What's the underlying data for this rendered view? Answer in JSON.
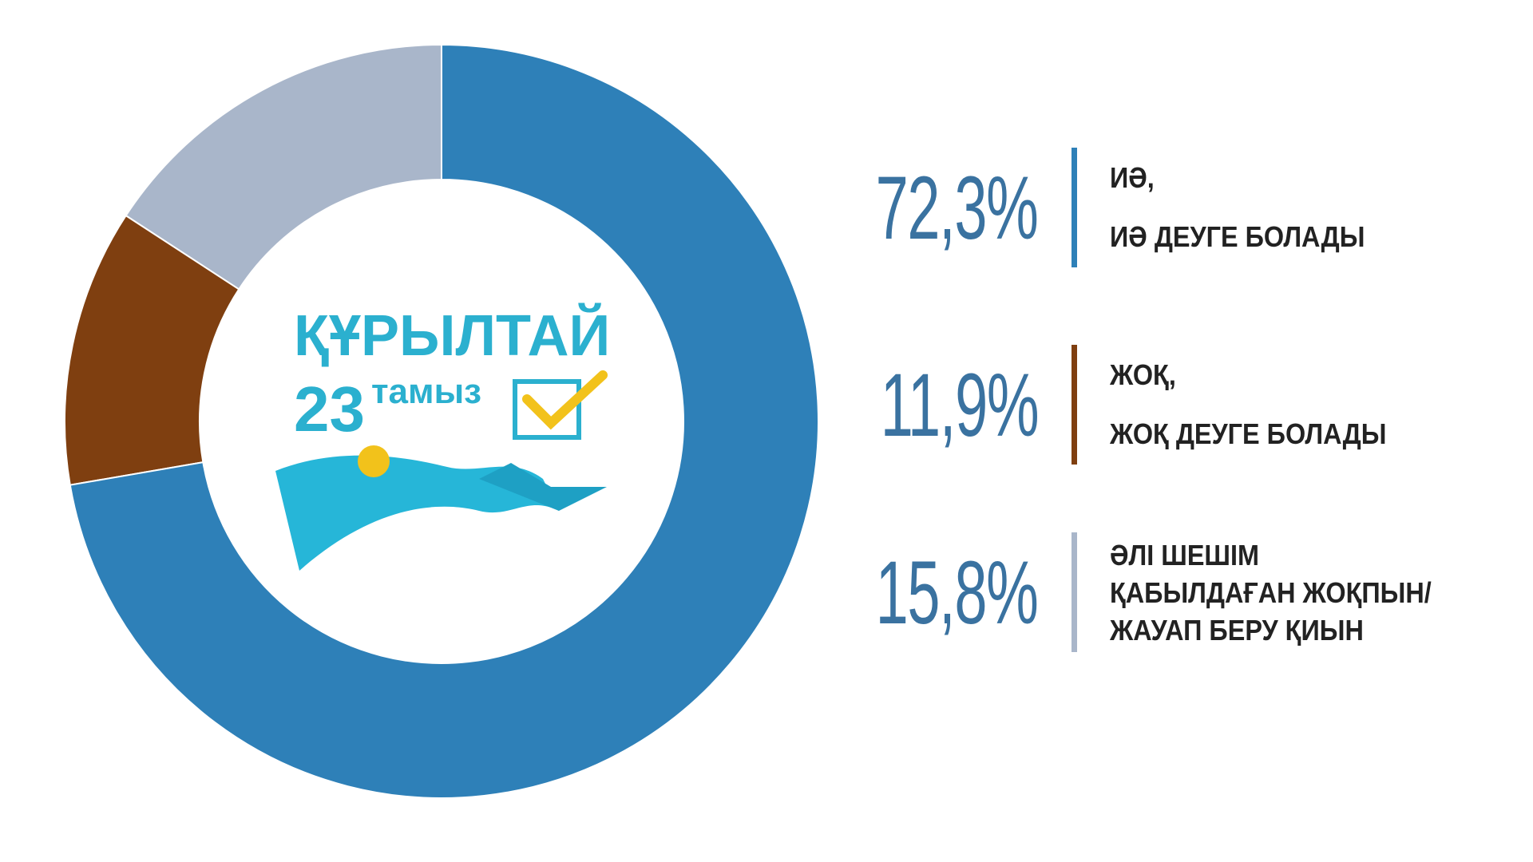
{
  "chart_data": {
    "type": "donut",
    "categories": [
      "ИӘ,\nИӘ ДЕУГЕ БОЛАДЫ",
      "ЖОҚ,\nЖОҚ ДЕУГЕ БОЛАДЫ",
      "ӘЛІ ШЕШІМ\nҚАБЫЛДАҒАН ЖОҚПЫН/\nЖАУАП БЕРУ ҚИЫН"
    ],
    "values": [
      72.3,
      11.9,
      15.8
    ],
    "value_labels": [
      "72,3%",
      "11,9%",
      "15,8%"
    ],
    "colors": [
      "#2e80b8",
      "#7f3f10",
      "#a9b6ca"
    ]
  },
  "logo": {
    "title": "ҚҰРЫЛТАЙ",
    "day": "23",
    "month": "тамыз"
  }
}
